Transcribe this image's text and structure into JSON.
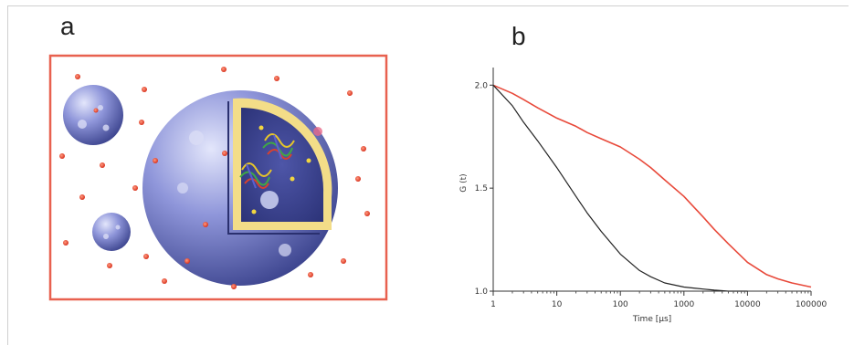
{
  "panels": {
    "a": "a",
    "b": "b"
  },
  "chart_data": {
    "type": "line",
    "xlabel": "Time [µs]",
    "ylabel": "G (t)",
    "xscale": "log",
    "xlim": [
      1,
      100000
    ],
    "ylim": [
      1.0,
      2.05
    ],
    "x_ticks": [
      1,
      10,
      100,
      1000,
      10000,
      100000
    ],
    "x_tick_labels": [
      "1",
      "10",
      "100",
      "1000",
      "10000",
      "100000"
    ],
    "y_ticks": [
      1.0,
      1.5,
      2.0
    ],
    "y_tick_labels": [
      "1.0",
      "1.5",
      "2.0"
    ],
    "grid": false,
    "series": [
      {
        "color": "#e8493a",
        "x": [
          1,
          2,
          3,
          5,
          10,
          20,
          30,
          50,
          100,
          200,
          300,
          500,
          1000,
          2000,
          3000,
          5000,
          10000,
          20000,
          30000,
          50000,
          100000
        ],
        "y": [
          2.0,
          1.96,
          1.93,
          1.89,
          1.84,
          1.8,
          1.77,
          1.74,
          1.7,
          1.64,
          1.6,
          1.54,
          1.46,
          1.36,
          1.3,
          1.23,
          1.14,
          1.08,
          1.06,
          1.04,
          1.02
        ]
      },
      {
        "color": "#222222",
        "x": [
          1,
          2,
          3,
          5,
          10,
          20,
          30,
          50,
          100,
          200,
          300,
          500,
          1000,
          2000,
          3000,
          5000,
          10000
        ],
        "y": [
          2.0,
          1.9,
          1.82,
          1.73,
          1.6,
          1.46,
          1.38,
          1.29,
          1.18,
          1.1,
          1.07,
          1.04,
          1.02,
          1.01,
          1.005,
          1.0,
          1.0
        ]
      }
    ]
  }
}
